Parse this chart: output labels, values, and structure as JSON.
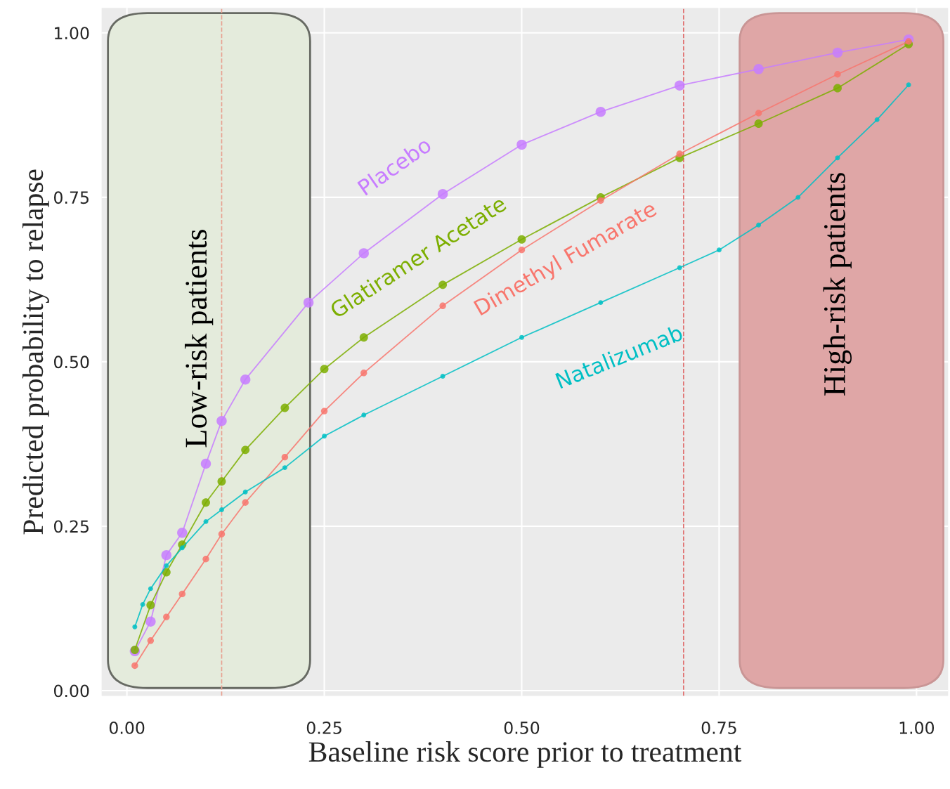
{
  "chart_data": {
    "type": "line",
    "xlabel": "Baseline risk score prior to treatment",
    "ylabel": "Predicted probability to relapse",
    "xlim": [
      -0.032,
      1.04
    ],
    "ylim": [
      -0.008,
      1.038
    ],
    "xticks": [
      {
        "value": 0,
        "label": "0.00"
      },
      {
        "value": 0.25,
        "label": "0.25"
      },
      {
        "value": 0.5,
        "label": "0.50"
      },
      {
        "value": 0.75,
        "label": "0.75"
      },
      {
        "value": 1,
        "label": "1.00"
      }
    ],
    "yticks": [
      {
        "value": 0,
        "label": "0.00"
      },
      {
        "value": 0.25,
        "label": "0.25"
      },
      {
        "value": 0.5,
        "label": "0.50"
      },
      {
        "value": 0.75,
        "label": "0.75"
      },
      {
        "value": 1,
        "label": "1.00"
      }
    ],
    "grid": true,
    "marker": "circle",
    "line_style": "solid",
    "series": [
      {
        "name": "Placebo",
        "color": "#c77cff",
        "x": [
          0.01,
          0.03,
          0.05,
          0.07,
          0.1,
          0.12,
          0.15,
          0.23,
          0.3,
          0.4,
          0.5,
          0.6,
          0.7,
          0.8,
          0.9,
          0.99
        ],
        "values": [
          0.06,
          0.105,
          0.206,
          0.24,
          0.345,
          0.41,
          0.473,
          0.59,
          0.665,
          0.755,
          0.83,
          0.88,
          0.92,
          0.945,
          0.97,
          0.99
        ]
      },
      {
        "name": "Glatiramer Acetate",
        "color": "#7cae00",
        "x": [
          0.01,
          0.03,
          0.05,
          0.07,
          0.1,
          0.12,
          0.15,
          0.2,
          0.25,
          0.3,
          0.4,
          0.5,
          0.6,
          0.7,
          0.8,
          0.9,
          0.99
        ],
        "values": [
          0.062,
          0.13,
          0.18,
          0.222,
          0.286,
          0.318,
          0.366,
          0.43,
          0.489,
          0.537,
          0.617,
          0.686,
          0.75,
          0.81,
          0.862,
          0.916,
          0.983
        ]
      },
      {
        "name": "Dimethyl Fumarate",
        "color": "#f8766d",
        "x": [
          0.01,
          0.03,
          0.05,
          0.07,
          0.1,
          0.12,
          0.15,
          0.2,
          0.25,
          0.3,
          0.4,
          0.5,
          0.6,
          0.7,
          0.8,
          0.9,
          0.99
        ],
        "values": [
          0.038,
          0.076,
          0.112,
          0.147,
          0.2,
          0.238,
          0.286,
          0.355,
          0.425,
          0.483,
          0.585,
          0.67,
          0.745,
          0.816,
          0.878,
          0.937,
          0.987
        ]
      },
      {
        "name": "Natalizumab",
        "color": "#00bfc4",
        "x": [
          0.01,
          0.02,
          0.03,
          0.05,
          0.07,
          0.1,
          0.12,
          0.15,
          0.2,
          0.25,
          0.3,
          0.4,
          0.5,
          0.6,
          0.7,
          0.75,
          0.8,
          0.85,
          0.9,
          0.95,
          0.99
        ],
        "values": [
          0.097,
          0.131,
          0.155,
          0.19,
          0.217,
          0.257,
          0.275,
          0.302,
          0.339,
          0.387,
          0.419,
          0.478,
          0.537,
          0.59,
          0.643,
          0.67,
          0.708,
          0.75,
          0.81,
          0.868,
          0.921
        ]
      }
    ],
    "ref_lines": [
      {
        "axis": "x",
        "value": 0.12,
        "color": "#e8a090",
        "line_style": "dashed"
      },
      {
        "axis": "x",
        "value": 0.705,
        "color": "#e07070",
        "line_style": "dashed"
      }
    ],
    "bands": [
      {
        "axis": "x",
        "from": -0.024,
        "to": 0.232,
        "label": "Low-risk patients",
        "color": "#e4ebdc"
      },
      {
        "axis": "x",
        "from": 0.776,
        "to": 1.034,
        "label": "High-risk patients",
        "color": "#dfa6a6"
      }
    ]
  }
}
